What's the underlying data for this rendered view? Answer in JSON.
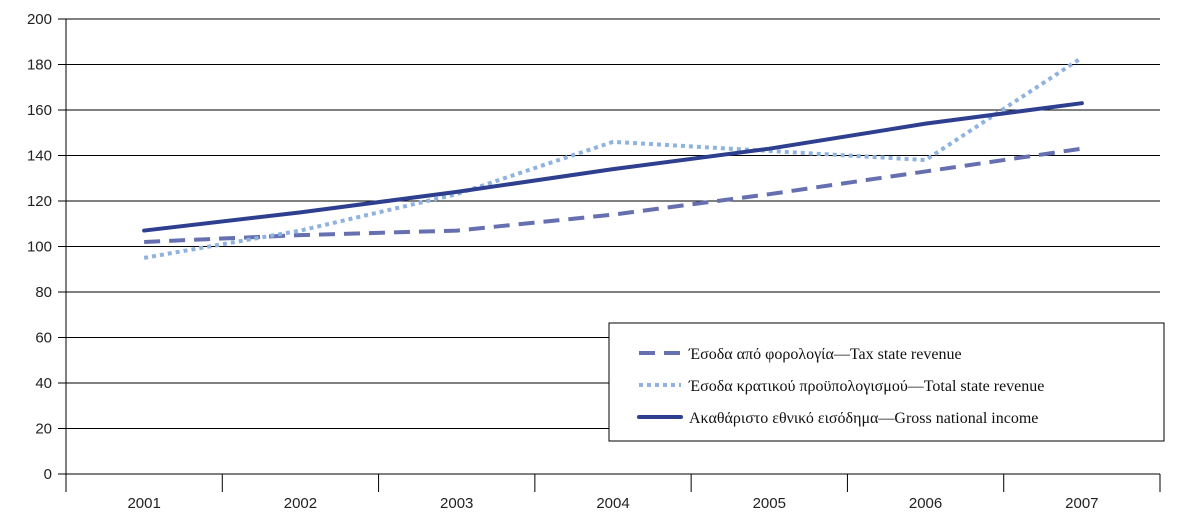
{
  "chart_data": {
    "type": "line",
    "title": "",
    "xlabel": "",
    "ylabel": "",
    "categories": [
      "2001",
      "2002",
      "2003",
      "2004",
      "2005",
      "2006",
      "2007"
    ],
    "ylim": [
      0,
      200
    ],
    "yticks": [
      "0",
      "20",
      "40",
      "60",
      "80",
      "100",
      "120",
      "140",
      "160",
      "180",
      "200"
    ],
    "grid": "horizontal",
    "legend_position": "lower-right",
    "series": [
      {
        "name": "Έσοδα από φορολογία—Tax state revenue",
        "style": "dashed",
        "color": "#6670b0",
        "values": [
          102,
          105,
          107,
          114,
          123,
          133,
          143
        ]
      },
      {
        "name": "Έσοδα κρατικού προϋπολογισμού—Total state revenue",
        "style": "dotted",
        "color": "#8fb3de",
        "values": [
          95,
          107,
          123,
          146,
          142,
          138,
          183
        ]
      },
      {
        "name": "Ακαθάριστο εθνικό εισόδημα—Gross national  income",
        "style": "solid",
        "color": "#2e3f8f",
        "values": [
          107,
          115,
          124,
          134,
          143,
          154,
          163
        ]
      }
    ]
  }
}
